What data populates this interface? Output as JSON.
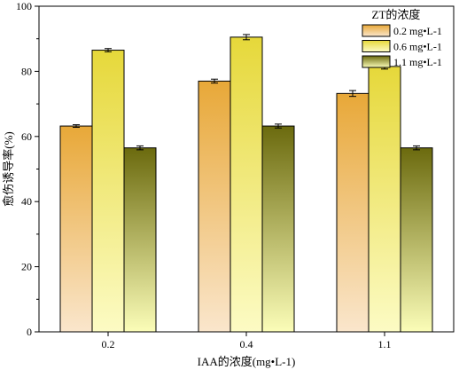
{
  "chart_data": {
    "type": "bar",
    "categories": [
      "0.2",
      "0.4",
      "1.1"
    ],
    "xlabel": "IAA的浓度(mg•L-1)",
    "ylabel": "愈伤诱导率(%)",
    "ylim": [
      0,
      100
    ],
    "yticks": [
      0,
      20,
      40,
      60,
      80,
      100
    ],
    "legend": {
      "title": "ZT的浓度",
      "placement": "top-right"
    },
    "series": [
      {
        "name": "0.2 mg•L-1",
        "values": [
          63.2,
          77.0,
          73.2
        ],
        "errors": [
          0.4,
          0.6,
          0.9
        ],
        "color_top": "#e8a838",
        "color_bottom": "#fae6cc"
      },
      {
        "name": "0.6 mg•L-1",
        "values": [
          86.5,
          90.5,
          81.5
        ],
        "errors": [
          0.5,
          0.8,
          0.8
        ],
        "color_top": "#e6d83a",
        "color_bottom": "#fcfbc4"
      },
      {
        "name": "1.1 mg•L-1",
        "values": [
          56.5,
          63.2,
          56.5
        ],
        "errors": [
          0.6,
          0.6,
          0.6
        ],
        "color_top": "#6b6a0e",
        "color_bottom": "#fbfdb8"
      }
    ],
    "grid": false
  }
}
